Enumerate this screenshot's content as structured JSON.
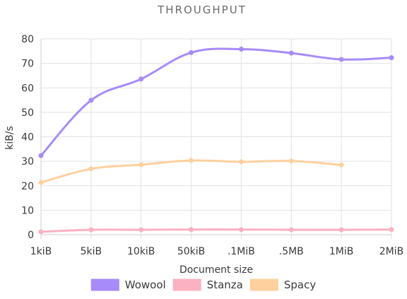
{
  "chart_data": {
    "type": "line",
    "title": "THROUGHPUT",
    "xlabel": "Document size",
    "ylabel": "kiB/s",
    "categories": [
      "1kiB",
      "5kiB",
      "10kiB",
      "50kiB",
      ".1MiB",
      ".5MB",
      "1MiB",
      "2MiB"
    ],
    "ylim": [
      0,
      80
    ],
    "yticks": [
      0,
      10,
      20,
      30,
      40,
      50,
      60,
      70,
      80
    ],
    "grid": true,
    "legend_position": "bottom",
    "series": [
      {
        "name": "Wowool",
        "color": "#a78bfa",
        "values": [
          32.3,
          54.9,
          63.6,
          74.4,
          75.8,
          74.2,
          71.6,
          72.3
        ]
      },
      {
        "name": "Stanza",
        "color": "#fbb1c1",
        "values": [
          1.2,
          2.0,
          2.0,
          2.1,
          2.1,
          2.0,
          2.0,
          2.1
        ]
      },
      {
        "name": "Spacy",
        "color": "#fdd09e",
        "values": [
          21.3,
          26.9,
          28.6,
          30.3,
          29.8,
          30.1,
          28.5,
          null
        ]
      }
    ]
  }
}
